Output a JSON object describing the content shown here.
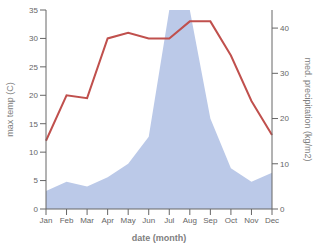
{
  "chart_data": {
    "type": "combo",
    "categories": [
      "Jan",
      "Feb",
      "Mar",
      "Apr",
      "May",
      "Jun",
      "Jul",
      "Aug",
      "Sep",
      "Oct",
      "Nov",
      "Dec"
    ],
    "series": [
      {
        "type": "area",
        "axis": "y2",
        "color": "#bbc9e8",
        "values": [
          4,
          6,
          5,
          7,
          10,
          16,
          44,
          44,
          20,
          9,
          6,
          8
        ]
      },
      {
        "type": "line",
        "color": "#c0504d",
        "values": [
          12,
          20,
          19.5,
          30,
          31,
          30,
          30,
          33,
          33,
          27,
          19,
          13
        ]
      }
    ],
    "xlabel": "date (month)",
    "ylabel": "max temp (C)",
    "y2label": "med. precipitation (kg/m2)",
    "ylim": [
      0,
      35
    ],
    "yticks": [
      0,
      5,
      10,
      15,
      20,
      25,
      30,
      35
    ],
    "y2lim": [
      0,
      44
    ],
    "y2ticks": [
      0,
      10,
      20,
      30,
      40
    ],
    "grid": false
  }
}
